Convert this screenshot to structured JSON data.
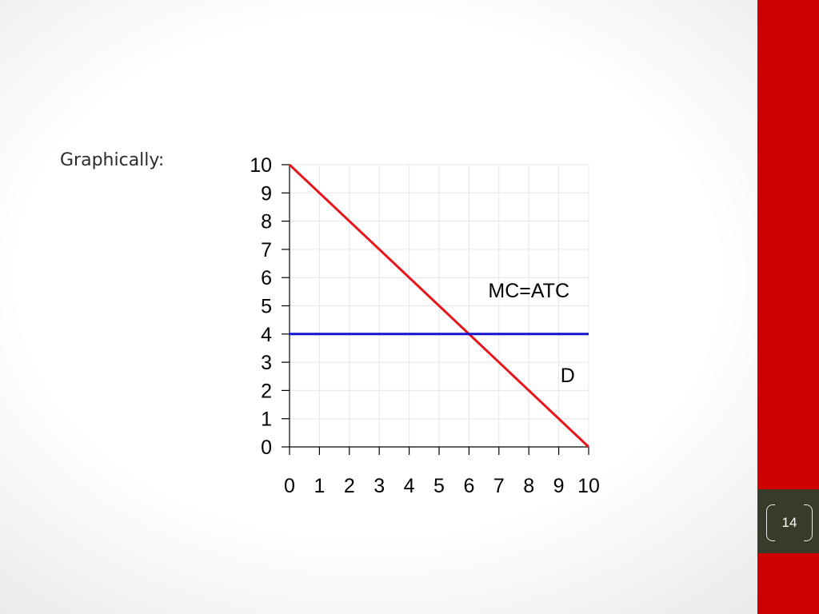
{
  "slide": {
    "label": "Graphically:",
    "page_number": "14"
  },
  "colors": {
    "sidebar": "#cc0000",
    "page_band": "#3a3a2a",
    "demand_line": "#e8141c",
    "cost_line": "#1414c8",
    "grid": "#e6e6e6"
  },
  "chart_data": {
    "type": "line",
    "title": "",
    "xlabel": "",
    "ylabel": "",
    "xlim": [
      0,
      10
    ],
    "ylim": [
      0,
      10
    ],
    "grid": true,
    "x_ticks": [
      "0",
      "1",
      "2",
      "3",
      "4",
      "5",
      "6",
      "7",
      "8",
      "9",
      "10"
    ],
    "y_ticks": [
      "0",
      "1",
      "2",
      "3",
      "4",
      "5",
      "6",
      "7",
      "8",
      "9",
      "10"
    ],
    "series": [
      {
        "name": "D",
        "label": "D",
        "color": "#e8141c",
        "x": [
          0,
          10
        ],
        "y": [
          10,
          0
        ]
      },
      {
        "name": "MC=ATC",
        "label": "MC=ATC",
        "color": "#1414c8",
        "x": [
          0,
          10
        ],
        "y": [
          4,
          4
        ]
      }
    ],
    "annotations": [
      {
        "text": "MC=ATC",
        "x": 8.0,
        "y": 5.3
      },
      {
        "text": "D",
        "x": 9.3,
        "y": 2.3
      }
    ]
  }
}
